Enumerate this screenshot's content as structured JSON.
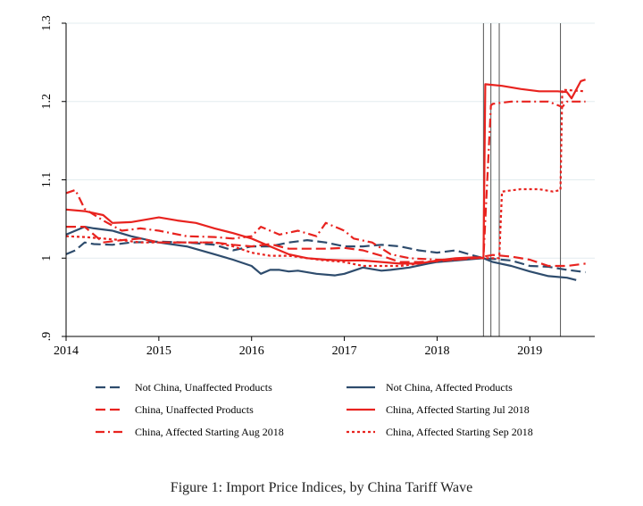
{
  "chart_data": {
    "type": "line",
    "title": "",
    "xlabel": "",
    "ylabel": "",
    "xlim": [
      2014,
      2019.7
    ],
    "ylim": [
      0.9,
      1.3
    ],
    "x_ticks": [
      2014,
      2015,
      2016,
      2017,
      2018,
      2019
    ],
    "x_tick_labels": [
      "2014",
      "2015",
      "2016",
      "2017",
      "2018",
      "2019"
    ],
    "y_ticks": [
      0.9,
      1.0,
      1.1,
      1.2,
      1.3
    ],
    "y_tick_labels": [
      ".9",
      "1",
      "1.1",
      "1.2",
      "1.3"
    ],
    "grid": "horizontal",
    "legend_position": "bottom",
    "vertical_lines": [
      2018.5,
      2018.58,
      2018.67,
      2019.33
    ],
    "series": [
      {
        "name": "Not China, Unaffected Products",
        "color": "#2e4c6d",
        "dash": "dashed",
        "x": [
          2014.0,
          2014.1,
          2014.2,
          2014.3,
          2014.5,
          2014.7,
          2015.0,
          2015.3,
          2015.6,
          2015.8,
          2016.0,
          2016.2,
          2016.4,
          2016.6,
          2016.8,
          2017.0,
          2017.2,
          2017.4,
          2017.6,
          2017.8,
          2018.0,
          2018.2,
          2018.4,
          2018.5,
          2018.6,
          2018.8,
          2019.0,
          2019.2,
          2019.4,
          2019.6
        ],
        "values": [
          1.005,
          1.01,
          1.02,
          1.018,
          1.017,
          1.02,
          1.021,
          1.02,
          1.017,
          1.01,
          1.015,
          1.015,
          1.02,
          1.023,
          1.02,
          1.015,
          1.015,
          1.017,
          1.015,
          1.01,
          1.007,
          1.01,
          1.003,
          1.0,
          0.999,
          0.997,
          0.99,
          0.989,
          0.985,
          0.982
        ]
      },
      {
        "name": "Not China, Affected Products",
        "color": "#2e4c6d",
        "dash": "solid",
        "x": [
          2014.0,
          2014.1,
          2014.2,
          2014.3,
          2014.5,
          2014.7,
          2015.0,
          2015.3,
          2015.6,
          2015.8,
          2016.0,
          2016.1,
          2016.2,
          2016.3,
          2016.4,
          2016.5,
          2016.7,
          2016.9,
          2017.0,
          2017.2,
          2017.4,
          2017.5,
          2017.7,
          2017.9,
          2018.0,
          2018.2,
          2018.4,
          2018.5,
          2018.6,
          2018.8,
          2019.0,
          2019.2,
          2019.4,
          2019.5
        ],
        "values": [
          1.03,
          1.035,
          1.04,
          1.038,
          1.035,
          1.028,
          1.02,
          1.015,
          1.005,
          0.998,
          0.99,
          0.98,
          0.985,
          0.985,
          0.983,
          0.984,
          0.98,
          0.978,
          0.98,
          0.988,
          0.984,
          0.985,
          0.988,
          0.993,
          0.995,
          0.997,
          0.999,
          1.0,
          0.995,
          0.99,
          0.983,
          0.977,
          0.975,
          0.972
        ]
      },
      {
        "name": "China, Unaffected Products",
        "color": "#e8231f",
        "dash": "dashed",
        "x": [
          2014.0,
          2014.2,
          2014.4,
          2014.6,
          2014.8,
          2015.0,
          2015.3,
          2015.6,
          2015.8,
          2016.0,
          2016.2,
          2016.4,
          2016.6,
          2016.8,
          2017.0,
          2017.2,
          2017.4,
          2017.6,
          2017.8,
          2018.0,
          2018.2,
          2018.4,
          2018.5,
          2018.6,
          2018.8,
          2019.0,
          2019.2,
          2019.4,
          2019.6
        ],
        "values": [
          1.04,
          1.04,
          1.02,
          1.023,
          1.025,
          1.02,
          1.02,
          1.02,
          1.017,
          1.015,
          1.018,
          1.012,
          1.012,
          1.012,
          1.013,
          1.01,
          1.003,
          0.995,
          0.995,
          0.996,
          0.998,
          1.0,
          1.002,
          1.004,
          1.002,
          0.998,
          0.99,
          0.99,
          0.993
        ]
      },
      {
        "name": "China, Affected Starting Jul 2018",
        "color": "#e8231f",
        "dash": "solid",
        "x": [
          2014.0,
          2014.2,
          2014.4,
          2014.5,
          2014.7,
          2015.0,
          2015.2,
          2015.4,
          2015.6,
          2015.8,
          2016.0,
          2016.2,
          2016.4,
          2016.6,
          2016.8,
          2017.0,
          2017.2,
          2017.4,
          2017.6,
          2017.8,
          2018.0,
          2018.2,
          2018.4,
          2018.5,
          2018.52,
          2018.7,
          2018.9,
          2019.1,
          2019.3,
          2019.4,
          2019.45,
          2019.55,
          2019.6
        ],
        "values": [
          1.062,
          1.06,
          1.055,
          1.045,
          1.046,
          1.052,
          1.048,
          1.045,
          1.038,
          1.032,
          1.025,
          1.015,
          1.005,
          1.0,
          0.998,
          0.997,
          0.997,
          0.995,
          0.993,
          0.993,
          0.997,
          1.0,
          1.001,
          1.0,
          1.222,
          1.22,
          1.216,
          1.213,
          1.213,
          1.212,
          1.204,
          1.226,
          1.228
        ]
      },
      {
        "name": "China, Affected Starting Aug 2018",
        "color": "#e8231f",
        "dash": "dashdot",
        "x": [
          2014.0,
          2014.1,
          2014.2,
          2014.4,
          2014.6,
          2014.8,
          2015.0,
          2015.3,
          2015.6,
          2015.8,
          2016.0,
          2016.1,
          2016.3,
          2016.5,
          2016.7,
          2016.8,
          2017.0,
          2017.1,
          2017.3,
          2017.5,
          2017.7,
          2018.0,
          2018.2,
          2018.4,
          2018.5,
          2018.58,
          2018.6,
          2018.8,
          2019.0,
          2019.2,
          2019.35,
          2019.4,
          2019.6
        ],
        "values": [
          1.083,
          1.087,
          1.063,
          1.048,
          1.035,
          1.038,
          1.035,
          1.028,
          1.027,
          1.025,
          1.028,
          1.04,
          1.03,
          1.035,
          1.028,
          1.045,
          1.035,
          1.025,
          1.02,
          1.005,
          1.0,
          0.998,
          0.998,
          1.0,
          1.001,
          1.195,
          1.197,
          1.2,
          1.2,
          1.2,
          1.193,
          1.2,
          1.2
        ]
      },
      {
        "name": "China, Affected Starting Sep 2018",
        "color": "#e8231f",
        "dash": "dotted",
        "x": [
          2014.0,
          2014.2,
          2014.4,
          2014.6,
          2014.8,
          2015.0,
          2015.3,
          2015.6,
          2015.8,
          2016.0,
          2016.2,
          2016.4,
          2016.6,
          2016.8,
          2017.0,
          2017.2,
          2017.4,
          2017.6,
          2017.8,
          2018.0,
          2018.2,
          2018.4,
          2018.6,
          2018.67,
          2018.7,
          2018.9,
          2019.1,
          2019.25,
          2019.33,
          2019.35,
          2019.6
        ],
        "values": [
          1.028,
          1.027,
          1.025,
          1.023,
          1.02,
          1.02,
          1.02,
          1.02,
          1.015,
          1.007,
          1.003,
          1.003,
          1.0,
          0.997,
          0.995,
          0.99,
          0.99,
          0.99,
          0.993,
          0.997,
          0.998,
          1.0,
          1.0,
          1.0,
          1.085,
          1.088,
          1.088,
          1.085,
          1.087,
          1.215,
          1.213
        ]
      }
    ]
  },
  "caption": "Figure 1: Import Price Indices, by China Tariff Wave"
}
